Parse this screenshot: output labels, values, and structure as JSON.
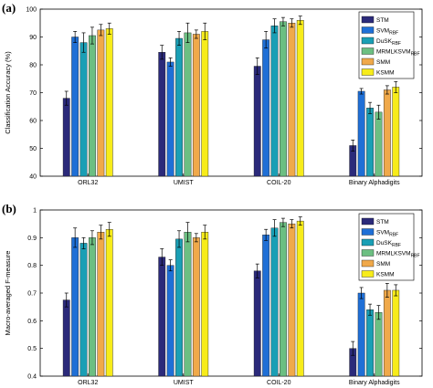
{
  "chart_data": [
    {
      "panel": "(a)",
      "type": "bar",
      "ylabel": "Classification Accuracy (%)",
      "xlabel": "",
      "ylim": [
        40,
        100
      ],
      "yticks": [
        40,
        50,
        60,
        70,
        80,
        90,
        100
      ],
      "grid": false,
      "legend_position": "top-right",
      "categories": [
        "ORL32",
        "UMIST",
        "COIL-20",
        "Binary Alphadigits"
      ],
      "series": [
        {
          "name": "STM",
          "color": "#2b2a7a",
          "values": [
            68.0,
            84.5,
            79.5,
            51.0
          ],
          "errors": [
            2.5,
            2.5,
            3.0,
            2.0
          ]
        },
        {
          "name": "SVMRBF",
          "color": "#1f6fd6",
          "values": [
            90.0,
            81.0,
            89.0,
            70.5
          ],
          "errors": [
            2.0,
            1.5,
            3.0,
            1.0
          ]
        },
        {
          "name": "DuSKRBF",
          "color": "#1a9fb5",
          "values": [
            88.0,
            89.5,
            94.0,
            64.5
          ],
          "errors": [
            3.5,
            2.5,
            2.5,
            2.0
          ]
        },
        {
          "name": "MRMLKSVMRBF",
          "color": "#6cbf82",
          "values": [
            90.5,
            91.5,
            95.5,
            63.0
          ],
          "errors": [
            3.0,
            3.5,
            1.5,
            2.5
          ]
        },
        {
          "name": "SMM",
          "color": "#f0a94a",
          "values": [
            92.5,
            91.0,
            95.0,
            71.0
          ],
          "errors": [
            2.0,
            1.5,
            1.5,
            1.5
          ]
        },
        {
          "name": "KSMM",
          "color": "#f7ec1a",
          "values": [
            93.0,
            92.0,
            96.0,
            72.0
          ],
          "errors": [
            2.0,
            3.0,
            1.5,
            2.0
          ]
        }
      ]
    },
    {
      "panel": "(b)",
      "type": "bar",
      "ylabel": "Macro-averaged F-measure",
      "xlabel": "",
      "ylim": [
        0.4,
        1.0
      ],
      "yticks": [
        0.4,
        0.5,
        0.6,
        0.7,
        0.8,
        0.9,
        1
      ],
      "grid": false,
      "legend_position": "top-right",
      "categories": [
        "ORL32",
        "UMIST",
        "COIL-20",
        "Binary Alphadigits"
      ],
      "series": [
        {
          "name": "STM",
          "color": "#2b2a7a",
          "values": [
            0.675,
            0.83,
            0.78,
            0.5
          ],
          "errors": [
            0.025,
            0.03,
            0.025,
            0.025
          ]
        },
        {
          "name": "SVMRBF",
          "color": "#1f6fd6",
          "values": [
            0.9,
            0.8,
            0.91,
            0.7
          ],
          "errors": [
            0.035,
            0.02,
            0.02,
            0.02
          ]
        },
        {
          "name": "DuSKRBF",
          "color": "#1a9fb5",
          "values": [
            0.88,
            0.895,
            0.935,
            0.64
          ],
          "errors": [
            0.02,
            0.03,
            0.03,
            0.02
          ]
        },
        {
          "name": "MRMLKSVMRBF",
          "color": "#6cbf82",
          "values": [
            0.9,
            0.92,
            0.955,
            0.63
          ],
          "errors": [
            0.025,
            0.035,
            0.015,
            0.025
          ]
        },
        {
          "name": "SMM",
          "color": "#f0a94a",
          "values": [
            0.92,
            0.9,
            0.95,
            0.71
          ],
          "errors": [
            0.025,
            0.015,
            0.015,
            0.025
          ]
        },
        {
          "name": "KSMM",
          "color": "#f7ec1a",
          "values": [
            0.93,
            0.92,
            0.96,
            0.71
          ],
          "errors": [
            0.025,
            0.025,
            0.015,
            0.02
          ]
        }
      ]
    }
  ],
  "legend_labels": [
    {
      "main": "STM",
      "sub": ""
    },
    {
      "main": "SVM",
      "sub": "RBF"
    },
    {
      "main": "DuSK",
      "sub": "RBF"
    },
    {
      "main": "MRMLKSVM",
      "sub": "RBF"
    },
    {
      "main": "SMM",
      "sub": ""
    },
    {
      "main": "KSMM",
      "sub": ""
    }
  ]
}
